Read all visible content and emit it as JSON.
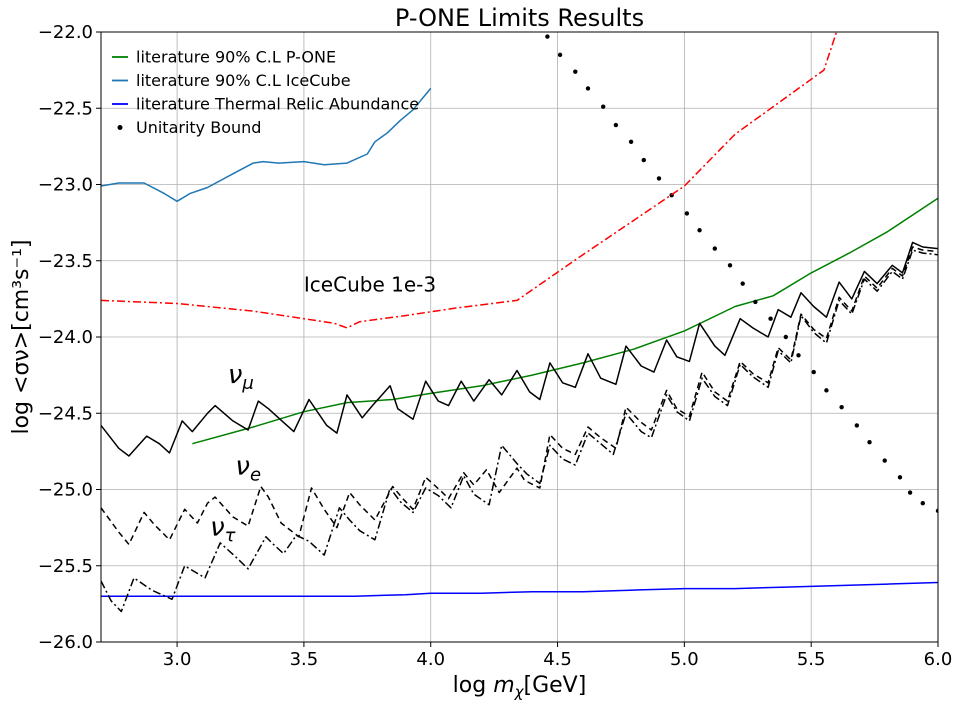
{
  "chart_data": {
    "type": "line",
    "title": "P-ONE Limits Results",
    "xlabel": {
      "main": "log ",
      "var": "m",
      "sub": "χ",
      "unit": "[GeV]"
    },
    "ylabel": "log  <σν>[cm³s⁻¹]",
    "xlim": [
      2.7,
      6.0
    ],
    "ylim": [
      -26.0,
      -22.0
    ],
    "xticks": [
      3.0,
      3.5,
      4.0,
      4.5,
      5.0,
      5.5,
      6.0
    ],
    "xtick_labels": [
      "3.0",
      "3.5",
      "4.0",
      "4.5",
      "5.0",
      "5.5",
      "6.0"
    ],
    "yticks": [
      -26.0,
      -25.5,
      -25.0,
      -24.5,
      -24.0,
      -23.5,
      -23.0,
      -22.5,
      -22.0
    ],
    "ytick_labels": [
      "−26.0",
      "−25.5",
      "−25.0",
      "−24.5",
      "−24.0",
      "−23.5",
      "−23.0",
      "−22.5",
      "−22.0"
    ],
    "grid": true,
    "legend_position": "upper-left",
    "legend": [
      {
        "label": "literature 90% C.L P-ONE",
        "color": "#008000",
        "marker": "line"
      },
      {
        "label": "literature 90% C.L IceCube",
        "color": "#1f77b4",
        "marker": "line"
      },
      {
        "label": "literature Thermal Relic Abundance",
        "color": "#0000ff",
        "marker": "line"
      },
      {
        "label": "Unitarity Bound",
        "color": "#000000",
        "marker": "dot"
      }
    ],
    "annotations": [
      {
        "text": "IceCube 1e-3",
        "x": 3.5,
        "y": -23.7
      }
    ],
    "flavor_labels": [
      {
        "nu": "ν",
        "sub": "μ",
        "x": 3.2,
        "y": -24.3
      },
      {
        "nu": "ν",
        "sub": "e",
        "x": 3.23,
        "y": -24.9
      },
      {
        "nu": "ν",
        "sub": "τ",
        "x": 3.13,
        "y": -25.3
      }
    ],
    "series": [
      {
        "name": "literature 90% C.L P-ONE",
        "color": "#008000",
        "style": "solid",
        "x": [
          3.06,
          3.3,
          3.5,
          3.67,
          3.85,
          4.0,
          4.2,
          4.4,
          4.6,
          4.8,
          5.0,
          5.2,
          5.35,
          5.5,
          5.65,
          5.8,
          6.0
        ],
        "y": [
          -24.7,
          -24.59,
          -24.49,
          -24.43,
          -24.41,
          -24.37,
          -24.32,
          -24.25,
          -24.17,
          -24.08,
          -23.96,
          -23.8,
          -23.73,
          -23.58,
          -23.45,
          -23.31,
          -23.09
        ]
      },
      {
        "name": "literature 90% C.L IceCube",
        "color": "#1f77b4",
        "style": "solid",
        "x": [
          2.7,
          2.77,
          2.87,
          2.95,
          3.0,
          3.05,
          3.12,
          3.22,
          3.3,
          3.34,
          3.4,
          3.5,
          3.58,
          3.67,
          3.75,
          3.78,
          3.83,
          3.88,
          3.93,
          4.0
        ],
        "y": [
          -23.01,
          -22.99,
          -22.99,
          -23.06,
          -23.11,
          -23.06,
          -23.02,
          -22.93,
          -22.86,
          -22.85,
          -22.86,
          -22.85,
          -22.87,
          -22.86,
          -22.8,
          -22.72,
          -22.66,
          -22.58,
          -22.51,
          -22.37
        ]
      },
      {
        "name": "literature Thermal Relic Abundance",
        "color": "#0000ff",
        "style": "solid",
        "x": [
          2.7,
          3.0,
          3.5,
          3.7,
          3.9,
          4.0,
          4.2,
          4.4,
          4.6,
          4.8,
          5.0,
          5.2,
          5.4,
          5.6,
          5.8,
          6.0
        ],
        "y": [
          -25.7,
          -25.7,
          -25.7,
          -25.7,
          -25.69,
          -25.68,
          -25.68,
          -25.67,
          -25.67,
          -25.66,
          -25.65,
          -25.65,
          -25.64,
          -25.63,
          -25.62,
          -25.61
        ]
      },
      {
        "name": "Unitarity Bound",
        "color": "#000000",
        "style": "dots",
        "x": [
          4.46,
          4.51,
          4.57,
          4.62,
          4.68,
          4.73,
          4.79,
          4.84,
          4.9,
          4.95,
          5.01,
          5.06,
          5.12,
          5.18,
          5.23,
          5.28,
          5.34,
          5.4,
          5.45,
          5.51,
          5.56,
          5.62,
          5.68,
          5.73,
          5.79,
          5.85,
          5.89,
          5.94,
          6.0
        ],
        "y": [
          -22.03,
          -22.15,
          -22.26,
          -22.37,
          -22.49,
          -22.61,
          -22.72,
          -22.84,
          -22.96,
          -23.07,
          -23.19,
          -23.3,
          -23.42,
          -23.53,
          -23.65,
          -23.77,
          -23.88,
          -24.0,
          -24.12,
          -24.23,
          -24.35,
          -24.46,
          -24.58,
          -24.69,
          -24.81,
          -24.92,
          -25.02,
          -25.09,
          -25.14
        ]
      },
      {
        "color": "#ff0000",
        "style": "dashdot",
        "x": [
          2.7,
          3.0,
          3.3,
          3.5,
          3.62,
          3.67,
          3.72,
          3.9,
          4.1,
          4.34,
          4.6,
          4.85,
          5.0,
          5.2,
          5.4,
          5.55,
          5.6
        ],
        "y": [
          -23.76,
          -23.78,
          -23.83,
          -23.88,
          -23.91,
          -23.94,
          -23.9,
          -23.86,
          -23.81,
          -23.76,
          -23.46,
          -23.18,
          -23.01,
          -22.67,
          -22.43,
          -22.25,
          -22.0
        ]
      },
      {
        "color": "#000000",
        "style": "solid",
        "x": [
          2.7,
          2.77,
          2.81,
          2.88,
          2.93,
          2.97,
          3.02,
          3.06,
          3.12,
          3.15,
          3.22,
          3.28,
          3.32,
          3.36,
          3.42,
          3.46,
          3.52,
          3.59,
          3.63,
          3.67,
          3.73,
          3.77,
          3.84,
          3.87,
          3.93,
          3.98,
          4.03,
          4.07,
          4.12,
          4.17,
          4.23,
          4.28,
          4.34,
          4.39,
          4.43,
          4.47,
          4.52,
          4.57,
          4.62,
          4.67,
          4.73,
          4.77,
          4.83,
          4.88,
          4.93,
          4.97,
          5.02,
          5.06,
          5.12,
          5.16,
          5.22,
          5.27,
          5.33,
          5.37,
          5.42,
          5.46,
          5.51,
          5.56,
          5.61,
          5.66,
          5.71,
          5.76,
          5.82,
          5.86,
          5.9,
          5.94,
          6.0
        ],
        "y": [
          -24.58,
          -24.73,
          -24.78,
          -24.65,
          -24.7,
          -24.76,
          -24.55,
          -24.62,
          -24.5,
          -24.45,
          -24.55,
          -24.61,
          -24.42,
          -24.47,
          -24.56,
          -24.62,
          -24.41,
          -24.58,
          -24.63,
          -24.38,
          -24.53,
          -24.45,
          -24.32,
          -24.47,
          -24.54,
          -24.29,
          -24.42,
          -24.45,
          -24.29,
          -24.42,
          -24.28,
          -24.38,
          -24.22,
          -24.36,
          -24.41,
          -24.17,
          -24.3,
          -24.33,
          -24.11,
          -24.27,
          -24.31,
          -24.06,
          -24.19,
          -24.23,
          -24.02,
          -24.13,
          -24.16,
          -23.91,
          -24.06,
          -24.12,
          -23.88,
          -23.94,
          -24.0,
          -23.82,
          -23.87,
          -23.71,
          -23.8,
          -23.87,
          -23.64,
          -23.75,
          -23.57,
          -23.65,
          -23.53,
          -23.58,
          -23.38,
          -23.41,
          -23.42
        ]
      },
      {
        "color": "#000000",
        "style": "dashed",
        "x": [
          2.7,
          2.77,
          2.81,
          2.87,
          2.91,
          2.97,
          3.03,
          3.08,
          3.12,
          3.15,
          3.22,
          3.28,
          3.33,
          3.36,
          3.41,
          3.48,
          3.53,
          3.58,
          3.63,
          3.68,
          3.72,
          3.78,
          3.85,
          3.89,
          3.93,
          3.98,
          4.04,
          4.07,
          4.13,
          4.17,
          4.22,
          4.27,
          4.34,
          4.37,
          4.43,
          4.47,
          4.52,
          4.57,
          4.62,
          4.67,
          4.73,
          4.77,
          4.83,
          4.87,
          4.93,
          4.97,
          5.02,
          5.07,
          5.12,
          5.17,
          5.22,
          5.27,
          5.33,
          5.37,
          5.42,
          5.46,
          5.51,
          5.56,
          5.61,
          5.66,
          5.71,
          5.76,
          5.82,
          5.86,
          5.9,
          5.94,
          6.0
        ],
        "y": [
          -25.12,
          -25.28,
          -25.36,
          -25.15,
          -25.23,
          -25.33,
          -25.13,
          -25.22,
          -25.09,
          -25.05,
          -25.18,
          -25.24,
          -24.98,
          -25.05,
          -25.22,
          -25.31,
          -24.99,
          -25.13,
          -25.25,
          -25.02,
          -25.1,
          -25.2,
          -24.98,
          -25.06,
          -25.13,
          -24.92,
          -25.01,
          -25.06,
          -24.89,
          -24.97,
          -24.87,
          -25.02,
          -24.86,
          -24.94,
          -24.99,
          -24.64,
          -24.73,
          -24.77,
          -24.59,
          -24.66,
          -24.73,
          -24.46,
          -24.56,
          -24.61,
          -24.35,
          -24.47,
          -24.52,
          -24.23,
          -24.36,
          -24.42,
          -24.16,
          -24.24,
          -24.3,
          -24.07,
          -24.15,
          -23.85,
          -23.95,
          -24.01,
          -23.74,
          -23.83,
          -23.6,
          -23.68,
          -23.55,
          -23.6,
          -23.41,
          -23.43,
          -23.44
        ]
      },
      {
        "color": "#000000",
        "style": "dashdot",
        "x": [
          2.7,
          2.74,
          2.78,
          2.83,
          2.9,
          2.98,
          3.03,
          3.08,
          3.11,
          3.17,
          3.23,
          3.28,
          3.35,
          3.38,
          3.42,
          3.47,
          3.52,
          3.58,
          3.64,
          3.68,
          3.72,
          3.78,
          3.84,
          3.88,
          3.93,
          3.98,
          4.03,
          4.08,
          4.13,
          4.17,
          4.23,
          4.28,
          4.34,
          4.38,
          4.43,
          4.47,
          4.52,
          4.57,
          4.62,
          4.67,
          4.72,
          4.77,
          4.83,
          4.87,
          4.93,
          4.97,
          5.02,
          5.07,
          5.12,
          5.17,
          5.22,
          5.27,
          5.33,
          5.37,
          5.42,
          5.46,
          5.51,
          5.56,
          5.61,
          5.66,
          5.71,
          5.76,
          5.82,
          5.86,
          5.9,
          5.94,
          6.0
        ],
        "y": [
          -25.6,
          -25.73,
          -25.8,
          -25.58,
          -25.66,
          -25.72,
          -25.5,
          -25.55,
          -25.58,
          -25.35,
          -25.44,
          -25.52,
          -25.31,
          -25.36,
          -25.42,
          -25.3,
          -25.34,
          -25.43,
          -25.12,
          -25.2,
          -25.27,
          -25.33,
          -24.99,
          -25.08,
          -25.15,
          -24.99,
          -25.04,
          -25.12,
          -24.91,
          -25.03,
          -25.1,
          -24.71,
          -24.83,
          -24.9,
          -24.96,
          -24.71,
          -24.8,
          -24.84,
          -24.63,
          -24.7,
          -24.77,
          -24.5,
          -24.62,
          -24.66,
          -24.38,
          -24.49,
          -24.55,
          -24.27,
          -24.39,
          -24.45,
          -24.18,
          -24.26,
          -24.33,
          -24.09,
          -24.17,
          -23.86,
          -23.97,
          -24.04,
          -23.76,
          -23.85,
          -23.62,
          -23.7,
          -23.57,
          -23.62,
          -23.43,
          -23.45,
          -23.46
        ]
      }
    ]
  }
}
